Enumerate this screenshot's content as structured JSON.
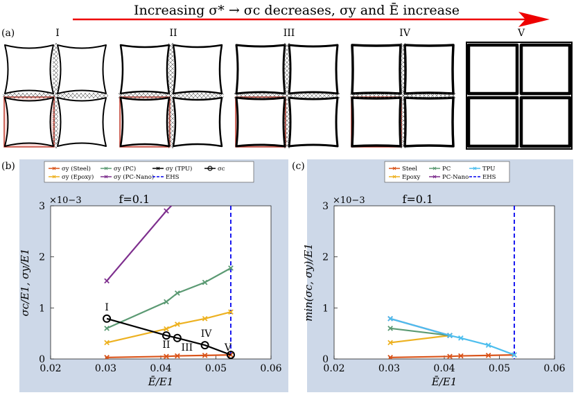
{
  "header": {
    "caption": "Increasing σ*  →  σc decreases, σy and Ē increase",
    "arrow_color": "#ee0000"
  },
  "panel_a": {
    "label": "(a)",
    "stage_labels": [
      "I",
      "II",
      "III",
      "IV",
      "V"
    ]
  },
  "chart_data": [
    {
      "panel_label": "(b)",
      "type": "line",
      "title": "f=0.1",
      "xlabel": "Ē/E1",
      "ylabel": "σc/E1, σy/E1",
      "xlim": [
        0.02,
        0.06
      ],
      "ylim": [
        0,
        0.003
      ],
      "x_ticks": [
        "0.02",
        "0.03",
        "0.04",
        "0.05",
        "0.06"
      ],
      "y_ticks": [
        "0",
        "1",
        "2",
        "3"
      ],
      "y_exponent": "×10−3",
      "background": "#cdd8e8",
      "legend": {
        "placement": "top",
        "entries": [
          "σy (Steel)",
          "σy (PC)",
          "σy (TPU)",
          "σc",
          "σy (Epoxy)",
          "σy (PC-Nano)",
          "EHS"
        ]
      },
      "series": [
        {
          "name": "σy (Steel)",
          "color": "#d95319",
          "marker": "x",
          "x": [
            0.0302,
            0.041,
            0.043,
            0.048,
            0.0527
          ],
          "y": [
            3e-05,
            5e-05,
            6e-05,
            7e-05,
            8e-05
          ]
        },
        {
          "name": "σy (Epoxy)",
          "color": "#edb120",
          "marker": "x",
          "x": [
            0.0302,
            0.041,
            0.043,
            0.048,
            0.0527
          ],
          "y": [
            0.00032,
            0.00059,
            0.00068,
            0.00079,
            0.00092
          ]
        },
        {
          "name": "σy (PC)",
          "color": "#5b9a73",
          "marker": "x",
          "x": [
            0.0302,
            0.041,
            0.043,
            0.048,
            0.0527
          ],
          "y": [
            0.0006,
            0.00112,
            0.00129,
            0.0015,
            0.00178
          ]
        },
        {
          "name": "σy (PC-Nano)",
          "color": "#7e2f8e",
          "marker": "x",
          "x": [
            0.0302,
            0.041,
            0.043
          ],
          "y": [
            0.00153,
            0.0029,
            0.00312
          ]
        },
        {
          "name": "σc",
          "color": "#000000",
          "marker": "o",
          "x": [
            0.0302,
            0.041,
            0.043,
            0.048,
            0.0527
          ],
          "y": [
            0.00079,
            0.00046,
            0.00041,
            0.00027,
            8e-05
          ]
        }
      ],
      "vline": {
        "name": "EHS",
        "x": 0.0527,
        "color": "#0000ee"
      },
      "annotations": [
        {
          "text": "I",
          "x": 0.0302,
          "y": 0.00079
        },
        {
          "text": "II",
          "x": 0.041,
          "y": 0.00046
        },
        {
          "text": "III",
          "x": 0.043,
          "y": 0.00041
        },
        {
          "text": "IV",
          "x": 0.048,
          "y": 0.00027
        },
        {
          "text": "V",
          "x": 0.0527,
          "y": 8e-05
        }
      ]
    },
    {
      "panel_label": "(c)",
      "type": "line",
      "title": "f=0.1",
      "xlabel": "Ē/E1",
      "ylabel": "min(σc, σy)/E1",
      "xlim": [
        0.02,
        0.06
      ],
      "ylim": [
        0,
        0.003
      ],
      "x_ticks": [
        "0.02",
        "0.03",
        "0.04",
        "0.05",
        "0.06"
      ],
      "y_ticks": [
        "0",
        "1",
        "2",
        "3"
      ],
      "y_exponent": "×10−3",
      "background": "#cdd8e8",
      "legend": {
        "placement": "top",
        "entries": [
          "Steel",
          "PC",
          "TPU",
          "Epoxy",
          "PC-Nano",
          "EHS"
        ]
      },
      "series": [
        {
          "name": "Steel",
          "color": "#d95319",
          "marker": "x",
          "x": [
            0.0302,
            0.041,
            0.043,
            0.048,
            0.0527
          ],
          "y": [
            3e-05,
            5e-05,
            6e-05,
            7e-05,
            8e-05
          ]
        },
        {
          "name": "Epoxy",
          "color": "#edb120",
          "marker": "x",
          "x": [
            0.0302,
            0.041
          ],
          "y": [
            0.00032,
            0.00046
          ]
        },
        {
          "name": "PC",
          "color": "#5b9a73",
          "marker": "x",
          "x": [
            0.0302,
            0.041
          ],
          "y": [
            0.0006,
            0.00046
          ]
        },
        {
          "name": "PC-Nano",
          "color": "#7e2f8e",
          "marker": "x",
          "x": [
            0.0302,
            0.041
          ],
          "y": [
            0.00079,
            0.00046
          ]
        },
        {
          "name": "TPU",
          "color": "#4dbeee",
          "marker": "x",
          "x": [
            0.0302,
            0.041,
            0.043,
            0.048,
            0.0527
          ],
          "y": [
            0.00079,
            0.00046,
            0.00041,
            0.00027,
            8e-05
          ]
        }
      ],
      "vline": {
        "name": "EHS",
        "x": 0.0527,
        "color": "#0000ee"
      }
    }
  ]
}
